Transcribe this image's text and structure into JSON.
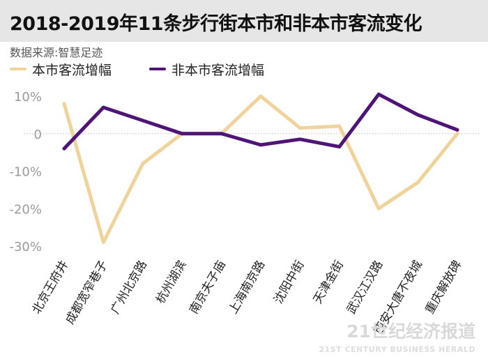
{
  "header": {
    "title": "2018-2019年11条步行街本市和非本市客流变化",
    "source": "数据来源:智慧足迹"
  },
  "legend": {
    "items": [
      {
        "label": "本市客流增幅",
        "color": "#efd39a"
      },
      {
        "label": "非本市客流增幅",
        "color": "#4e1476"
      }
    ]
  },
  "watermark": {
    "main": "21世纪经济报道",
    "sub": "21ST CENTURY BUSINESS HERALD"
  },
  "chart_data": {
    "type": "line",
    "categories": [
      "北京王府井",
      "成都宽窄巷子",
      "广州北京路",
      "杭州湖滨",
      "南京夫子庙",
      "上海南京路",
      "沈阳中街",
      "天津金街",
      "武汉江汉路",
      "西安大唐不夜城",
      "重庆解放碑"
    ],
    "series": [
      {
        "name": "本市客流增幅",
        "values": [
          8,
          -29,
          -8,
          0,
          0,
          10,
          1.5,
          2,
          -20,
          -13,
          0
        ],
        "color": "#efd39a"
      },
      {
        "name": "非本市客流增幅",
        "values": [
          -4,
          7,
          3.5,
          0,
          0,
          -3,
          -1.5,
          -3.5,
          10.5,
          5,
          1
        ],
        "color": "#4e1476"
      }
    ],
    "yticks": [
      10,
      0,
      -10,
      -20,
      -30
    ],
    "ytick_labels": [
      "10%",
      "0",
      "-10%",
      "-20%",
      "-30%"
    ],
    "ylim": [
      -30,
      10
    ],
    "zero_line": "dotted",
    "grid": false,
    "legend_position": "top-left"
  }
}
